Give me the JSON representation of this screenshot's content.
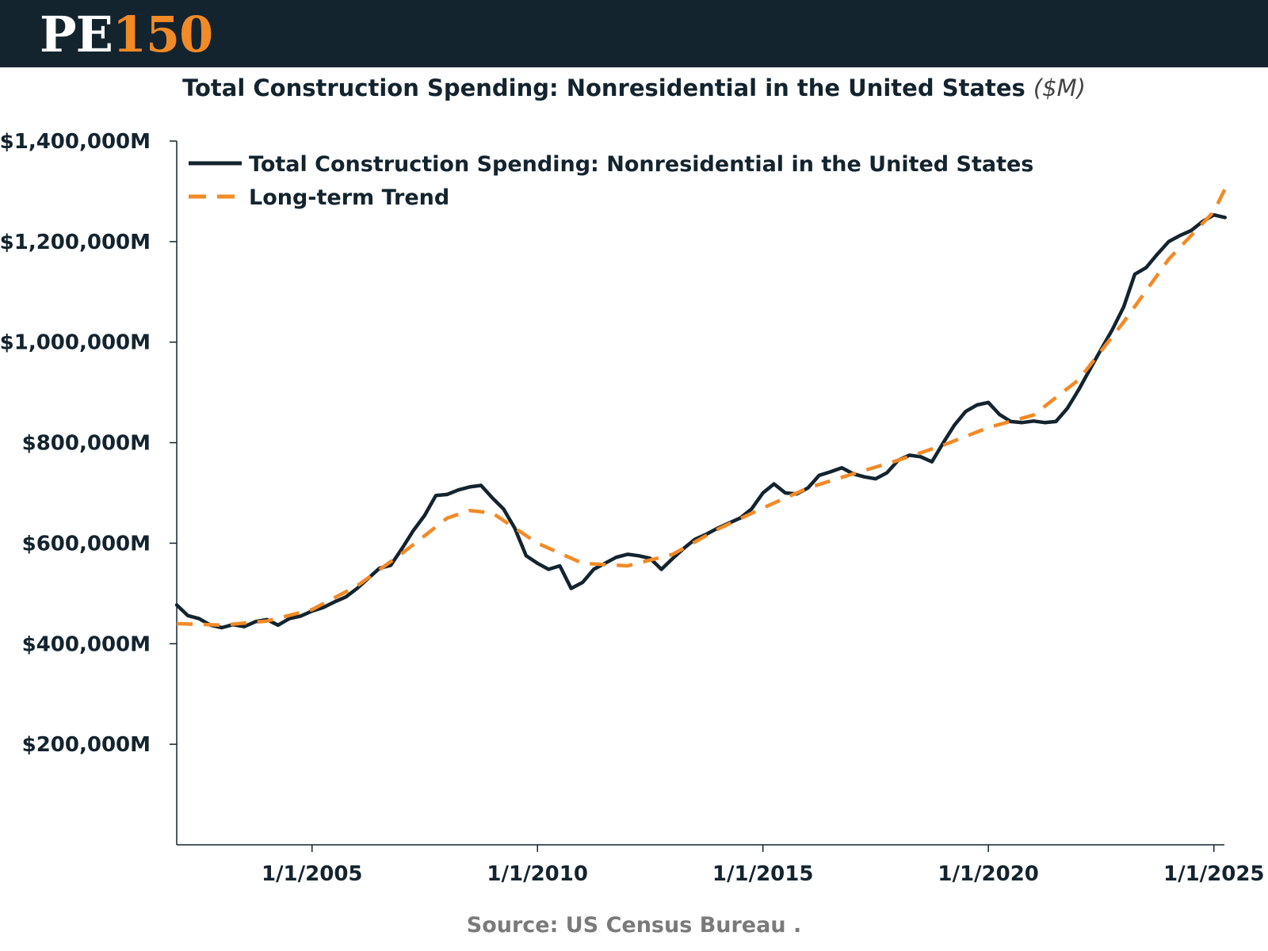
{
  "header": {
    "logo_pe": "PE",
    "logo_number": "150",
    "background": "#13242f",
    "accent": "#f28a26"
  },
  "chart_data": {
    "type": "line",
    "title": "Total Construction Spending: Nonresidential in the United States",
    "units_label": "($M)",
    "x_axis": {
      "type": "date",
      "range": [
        "2002-01-01",
        "2025-04-01"
      ],
      "ticks": [
        "1/1/2005",
        "1/1/2010",
        "1/1/2015",
        "1/1/2020",
        "1/1/2025"
      ]
    },
    "y_axis": {
      "range": [
        0,
        1400000
      ],
      "ticks": [
        "$200,000M",
        "$400,000M",
        "$600,000M",
        "$800,000M",
        "$1,000,000M",
        "$1,200,000M",
        "$1,400,000M"
      ],
      "tick_values": [
        200000,
        400000,
        600000,
        800000,
        1000000,
        1200000,
        1400000
      ]
    },
    "grid": false,
    "legend_position": "top-left",
    "series": [
      {
        "name": "Total Construction Spending: Nonresidential in the United States",
        "style": "solid",
        "color": "#13242f",
        "points": [
          [
            "2002-01-01",
            477000
          ],
          [
            "2002-04-01",
            456000
          ],
          [
            "2002-07-01",
            450000
          ],
          [
            "2002-10-01",
            437000
          ],
          [
            "2003-01-01",
            432000
          ],
          [
            "2003-04-01",
            438000
          ],
          [
            "2003-07-01",
            434000
          ],
          [
            "2003-10-01",
            444000
          ],
          [
            "2004-01-01",
            448000
          ],
          [
            "2004-04-01",
            437000
          ],
          [
            "2004-07-01",
            450000
          ],
          [
            "2004-10-01",
            455000
          ],
          [
            "2005-01-01",
            465000
          ],
          [
            "2005-04-01",
            472000
          ],
          [
            "2005-07-01",
            483000
          ],
          [
            "2005-10-01",
            493000
          ],
          [
            "2006-01-01",
            510000
          ],
          [
            "2006-04-01",
            530000
          ],
          [
            "2006-07-01",
            550000
          ],
          [
            "2006-10-01",
            556000
          ],
          [
            "2007-01-01",
            590000
          ],
          [
            "2007-04-01",
            625000
          ],
          [
            "2007-07-01",
            655000
          ],
          [
            "2007-10-01",
            695000
          ],
          [
            "2008-01-01",
            697000
          ],
          [
            "2008-04-01",
            706000
          ],
          [
            "2008-07-01",
            712000
          ],
          [
            "2008-10-01",
            715000
          ],
          [
            "2009-01-01",
            690000
          ],
          [
            "2009-04-01",
            668000
          ],
          [
            "2009-07-01",
            630000
          ],
          [
            "2009-10-01",
            575000
          ],
          [
            "2010-01-01",
            560000
          ],
          [
            "2010-04-01",
            548000
          ],
          [
            "2010-07-01",
            555000
          ],
          [
            "2010-10-01",
            510000
          ],
          [
            "2011-01-01",
            522000
          ],
          [
            "2011-04-01",
            548000
          ],
          [
            "2011-07-01",
            560000
          ],
          [
            "2011-10-01",
            572000
          ],
          [
            "2012-01-01",
            578000
          ],
          [
            "2012-04-01",
            575000
          ],
          [
            "2012-07-01",
            570000
          ],
          [
            "2012-10-01",
            548000
          ],
          [
            "2013-01-01",
            570000
          ],
          [
            "2013-04-01",
            590000
          ],
          [
            "2013-07-01",
            608000
          ],
          [
            "2013-10-01",
            618000
          ],
          [
            "2014-01-01",
            630000
          ],
          [
            "2014-04-01",
            640000
          ],
          [
            "2014-07-01",
            650000
          ],
          [
            "2014-10-01",
            668000
          ],
          [
            "2015-01-01",
            700000
          ],
          [
            "2015-04-01",
            718000
          ],
          [
            "2015-07-01",
            700000
          ],
          [
            "2015-10-01",
            698000
          ],
          [
            "2016-01-01",
            710000
          ],
          [
            "2016-04-01",
            735000
          ],
          [
            "2016-07-01",
            742000
          ],
          [
            "2016-10-01",
            750000
          ],
          [
            "2017-01-01",
            738000
          ],
          [
            "2017-04-01",
            732000
          ],
          [
            "2017-07-01",
            728000
          ],
          [
            "2017-10-01",
            740000
          ],
          [
            "2018-01-01",
            765000
          ],
          [
            "2018-04-01",
            775000
          ],
          [
            "2018-07-01",
            772000
          ],
          [
            "2018-10-01",
            762000
          ],
          [
            "2019-01-01",
            800000
          ],
          [
            "2019-04-01",
            835000
          ],
          [
            "2019-07-01",
            862000
          ],
          [
            "2019-10-01",
            875000
          ],
          [
            "2020-01-01",
            880000
          ],
          [
            "2020-04-01",
            856000
          ],
          [
            "2020-07-01",
            842000
          ],
          [
            "2020-10-01",
            840000
          ],
          [
            "2021-01-01",
            843000
          ],
          [
            "2021-04-01",
            840000
          ],
          [
            "2021-07-01",
            842000
          ],
          [
            "2021-10-01",
            868000
          ],
          [
            "2022-01-01",
            905000
          ],
          [
            "2022-04-01",
            945000
          ],
          [
            "2022-07-01",
            985000
          ],
          [
            "2022-10-01",
            1025000
          ],
          [
            "2023-01-01",
            1070000
          ],
          [
            "2023-04-01",
            1135000
          ],
          [
            "2023-07-01",
            1148000
          ],
          [
            "2023-10-01",
            1175000
          ],
          [
            "2024-01-01",
            1200000
          ],
          [
            "2024-04-01",
            1212000
          ],
          [
            "2024-07-01",
            1222000
          ],
          [
            "2024-10-01",
            1240000
          ],
          [
            "2025-01-01",
            1253000
          ],
          [
            "2025-04-01",
            1248000
          ]
        ]
      },
      {
        "name": "Long-term Trend",
        "style": "dashed",
        "color": "#f28a26",
        "points": [
          [
            "2002-01-01",
            440000
          ],
          [
            "2003-01-01",
            437000
          ],
          [
            "2004-01-01",
            445000
          ],
          [
            "2005-01-01",
            468000
          ],
          [
            "2006-01-01",
            515000
          ],
          [
            "2007-01-01",
            580000
          ],
          [
            "2008-01-01",
            650000
          ],
          [
            "2008-07-01",
            665000
          ],
          [
            "2009-01-01",
            660000
          ],
          [
            "2010-01-01",
            600000
          ],
          [
            "2011-01-01",
            560000
          ],
          [
            "2012-01-01",
            555000
          ],
          [
            "2013-01-01",
            578000
          ],
          [
            "2014-01-01",
            628000
          ],
          [
            "2015-01-01",
            670000
          ],
          [
            "2016-01-01",
            710000
          ],
          [
            "2017-01-01",
            738000
          ],
          [
            "2018-01-01",
            765000
          ],
          [
            "2019-01-01",
            795000
          ],
          [
            "2020-01-01",
            830000
          ],
          [
            "2021-01-01",
            855000
          ],
          [
            "2022-01-01",
            925000
          ],
          [
            "2023-01-01",
            1040000
          ],
          [
            "2024-01-01",
            1165000
          ],
          [
            "2025-01-01",
            1260000
          ],
          [
            "2025-04-01",
            1305000
          ]
        ]
      }
    ]
  },
  "source": "Source:  US Census Bureau ."
}
